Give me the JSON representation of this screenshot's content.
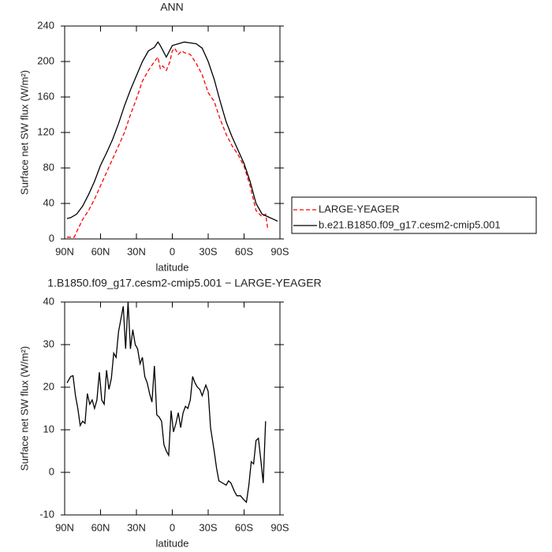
{
  "chart_data": [
    {
      "type": "line",
      "title": "ANN",
      "xlabel": "latitude",
      "ylabel": "Surface net SW flux (W/m²)",
      "xlim": [
        90,
        -90
      ],
      "xticks": [
        {
          "value": 90,
          "label": "90N"
        },
        {
          "value": 60,
          "label": "60N"
        },
        {
          "value": 30,
          "label": "30N"
        },
        0,
        {
          "value": -30,
          "label": "30S"
        },
        {
          "value": -60,
          "label": "60S"
        },
        {
          "value": -90,
          "label": "90S"
        }
      ],
      "ylim": [
        0,
        240
      ],
      "yticks": [
        0,
        40,
        80,
        120,
        160,
        200,
        240
      ],
      "legend": "right",
      "series": [
        {
          "name": "LARGE-YEAGER",
          "color": "#ff0000",
          "dash": true,
          "x": [
            88,
            85,
            82,
            80,
            75,
            70,
            65,
            60,
            55,
            50,
            45,
            40,
            35,
            30,
            25,
            20,
            15,
            12,
            10,
            8,
            5,
            2,
            0,
            -2,
            -5,
            -8,
            -10,
            -15,
            -20,
            -25,
            -30,
            -35,
            -40,
            -45,
            -50,
            -55,
            -60,
            -65,
            -70,
            -75,
            -78,
            -80
          ],
          "values": [
            2,
            2,
            2,
            8,
            22,
            32,
            45,
            60,
            75,
            90,
            105,
            120,
            140,
            158,
            178,
            190,
            200,
            205,
            192,
            195,
            190,
            200,
            212,
            215,
            208,
            212,
            210,
            208,
            198,
            185,
            165,
            155,
            135,
            118,
            105,
            95,
            82,
            60,
            32,
            25,
            28,
            10
          ]
        },
        {
          "name": "b.e21.B1850.f09_g17.cesm2-cmip5.001",
          "color": "#000000",
          "dash": false,
          "x": [
            88,
            85,
            80,
            75,
            70,
            65,
            60,
            55,
            50,
            45,
            40,
            35,
            30,
            25,
            20,
            15,
            12,
            10,
            5,
            0,
            -5,
            -10,
            -15,
            -20,
            -25,
            -30,
            -35,
            -40,
            -45,
            -50,
            -55,
            -60,
            -65,
            -70,
            -75,
            -80,
            -85,
            -88
          ],
          "values": [
            23,
            24,
            28,
            37,
            50,
            65,
            83,
            97,
            112,
            130,
            150,
            168,
            184,
            200,
            212,
            216,
            222,
            218,
            205,
            218,
            220,
            222,
            221,
            220,
            215,
            200,
            180,
            155,
            132,
            115,
            100,
            85,
            65,
            40,
            28,
            25,
            22,
            20
          ]
        }
      ]
    },
    {
      "type": "line",
      "title": "1.B1850.f09_g17.cesm2-cmip5.001 − LARGE-YEAGER",
      "xlabel": "latitude",
      "ylabel": "Surface net SW flux (W/m²)",
      "xlim": [
        90,
        -90
      ],
      "xticks": [
        {
          "value": 90,
          "label": "90N"
        },
        {
          "value": 60,
          "label": "60N"
        },
        {
          "value": 30,
          "label": "30N"
        },
        0,
        {
          "value": -30,
          "label": "30S"
        },
        {
          "value": -60,
          "label": "60S"
        },
        {
          "value": -90,
          "label": "90S"
        }
      ],
      "ylim": [
        -10,
        40
      ],
      "yticks": [
        -10,
        0,
        10,
        20,
        30,
        40
      ],
      "series": [
        {
          "color": "#000000",
          "dash": false,
          "x": [
            88,
            85,
            83,
            81,
            79,
            77,
            75,
            73,
            71,
            69,
            67,
            65,
            63,
            61,
            59,
            57,
            55,
            53,
            51,
            49,
            47,
            45,
            43,
            41,
            39,
            37,
            35,
            33,
            31,
            29,
            27,
            25,
            23,
            21,
            19,
            17,
            15,
            13,
            11,
            9,
            7,
            5,
            3,
            1,
            -1,
            -3,
            -5,
            -7,
            -9,
            -11,
            -13,
            -15,
            -17,
            -19,
            -21,
            -23,
            -25,
            -28,
            -30,
            -32,
            -35,
            -37,
            -39,
            -42,
            -45,
            -47,
            -49,
            -52,
            -54,
            -57,
            -60,
            -62,
            -64,
            -66,
            -68,
            -70,
            -72,
            -74,
            -76,
            -78
          ],
          "values": [
            21,
            22.5,
            22.7,
            18,
            15,
            11,
            12,
            11.5,
            18.5,
            16,
            17,
            15,
            17,
            23.5,
            17,
            16,
            24,
            19.5,
            22,
            28,
            27,
            33,
            36,
            39,
            29,
            40,
            29,
            33.5,
            30,
            29,
            25.5,
            27,
            22.5,
            21,
            18.5,
            16.5,
            25,
            13.5,
            13,
            12,
            6.5,
            5,
            4,
            14.5,
            9.5,
            11.5,
            14,
            10.5,
            14,
            15.5,
            15,
            17,
            22.5,
            21,
            20,
            19.5,
            18,
            20.5,
            19,
            10.5,
            5,
            1,
            -2,
            -2.5,
            -3,
            -2,
            -2.5,
            -4.5,
            -5.5,
            -5.5,
            -6.5,
            -7,
            -3,
            2.5,
            2,
            7.5,
            8,
            3,
            -2.5,
            12
          ]
        }
      ]
    }
  ]
}
